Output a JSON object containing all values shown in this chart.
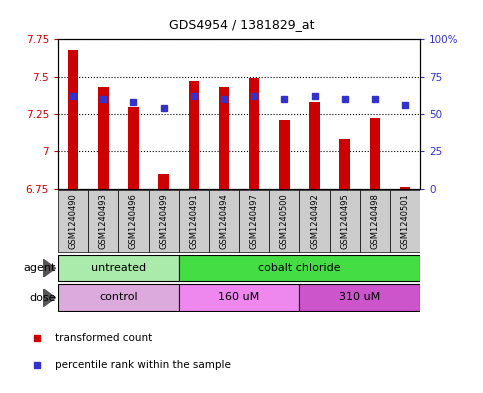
{
  "title": "GDS4954 / 1381829_at",
  "samples": [
    "GSM1240490",
    "GSM1240493",
    "GSM1240496",
    "GSM1240499",
    "GSM1240491",
    "GSM1240494",
    "GSM1240497",
    "GSM1240500",
    "GSM1240492",
    "GSM1240495",
    "GSM1240498",
    "GSM1240501"
  ],
  "transformed_count": [
    7.68,
    7.43,
    7.3,
    6.85,
    7.47,
    7.43,
    7.49,
    7.21,
    7.33,
    7.08,
    7.22,
    6.76
  ],
  "percentile_rank": [
    62,
    60,
    58,
    54,
    62,
    60,
    62,
    60,
    62,
    60,
    60,
    56
  ],
  "ylim_left": [
    6.75,
    7.75
  ],
  "ylim_right": [
    0,
    100
  ],
  "yticks_left": [
    6.75,
    7.0,
    7.25,
    7.5,
    7.75
  ],
  "yticks_right": [
    0,
    25,
    50,
    75,
    100
  ],
  "ytick_labels_left": [
    "6.75",
    "7",
    "7.25",
    "7.5",
    "7.75"
  ],
  "ytick_labels_right": [
    "0",
    "25",
    "50",
    "75",
    "100%"
  ],
  "bar_bottom": 6.75,
  "bar_color": "#cc0000",
  "dot_color": "#3333cc",
  "grid_color": "#000000",
  "agent_groups": [
    {
      "label": "untreated",
      "start": 0,
      "end": 4,
      "color": "#aaeaaa"
    },
    {
      "label": "cobalt chloride",
      "start": 4,
      "end": 12,
      "color": "#44dd44"
    }
  ],
  "dose_groups": [
    {
      "label": "control",
      "start": 0,
      "end": 4,
      "color": "#ddaadd"
    },
    {
      "label": "160 uM",
      "start": 4,
      "end": 8,
      "color": "#ee88ee"
    },
    {
      "label": "310 uM",
      "start": 8,
      "end": 12,
      "color": "#cc55cc"
    }
  ],
  "legend_items": [
    {
      "label": "transformed count",
      "color": "#cc0000"
    },
    {
      "label": "percentile rank within the sample",
      "color": "#3333cc"
    }
  ],
  "agent_label": "agent",
  "dose_label": "dose",
  "tick_color_left": "#cc0000",
  "tick_color_right": "#3333cc",
  "bg_plot": "#ffffff",
  "bg_label": "#cccccc",
  "figsize": [
    4.83,
    3.93
  ],
  "dpi": 100
}
